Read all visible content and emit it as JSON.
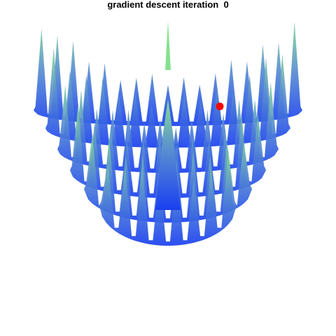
{
  "chart_data": {
    "type": "surface",
    "title": "gradient descent iteration  0",
    "xlabel": "",
    "ylabel": "",
    "zlabel": "",
    "axes_visible": false,
    "grid": false,
    "legend": "none",
    "surface": {
      "description_function": "bowl-shaped surface with dense periodic ripples (Rastrigin-like)",
      "color_low": "#1a3ff0",
      "color_mid": "#5a8fd0",
      "color_high": "#86e08e"
    },
    "series": [
      {
        "type": "point",
        "iteration": 0,
        "color": "#ff0000"
      }
    ]
  }
}
